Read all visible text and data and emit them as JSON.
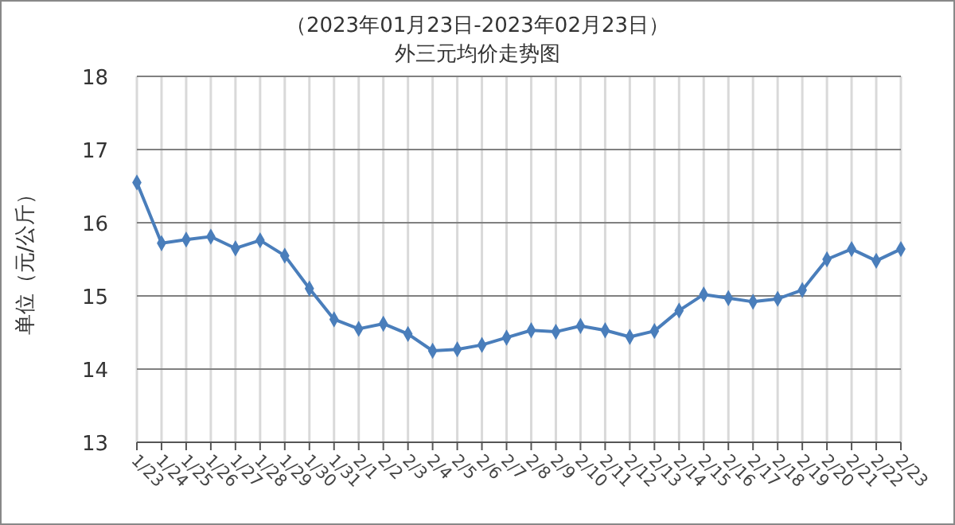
{
  "chart_data": {
    "type": "line",
    "title": "（2023年01月23日-2023年02月23日）",
    "subtitle": "外三元均价走势图",
    "ylabel": "单位（元/公斤）",
    "categories": [
      "1/23",
      "1/24",
      "1/25",
      "1/26",
      "1/27",
      "1/28",
      "1/29",
      "1/30",
      "1/31",
      "2/1",
      "2/2",
      "2/3",
      "2/4",
      "2/5",
      "2/6",
      "2/7",
      "2/8",
      "2/9",
      "2/10",
      "2/11",
      "2/12",
      "2/13",
      "2/14",
      "2/15",
      "2/16",
      "2/17",
      "2/18",
      "2/19",
      "2/20",
      "2/21",
      "2/22",
      "2/23"
    ],
    "series": [
      {
        "color": "#4a7ebb",
        "values": [
          16.55,
          15.72,
          15.77,
          15.81,
          15.65,
          15.76,
          15.55,
          15.1,
          14.68,
          14.55,
          14.62,
          14.48,
          14.25,
          14.27,
          14.33,
          14.43,
          14.53,
          14.51,
          14.59,
          14.53,
          14.44,
          14.52,
          14.8,
          15.02,
          14.97,
          14.92,
          14.96,
          15.08,
          15.5,
          15.64,
          15.48,
          15.64
        ]
      }
    ],
    "ylim": [
      13,
      18
    ],
    "yticks": [
      13,
      14,
      15,
      16,
      17,
      18
    ],
    "grid": true,
    "marker": "diamond",
    "line_style": "solid"
  }
}
